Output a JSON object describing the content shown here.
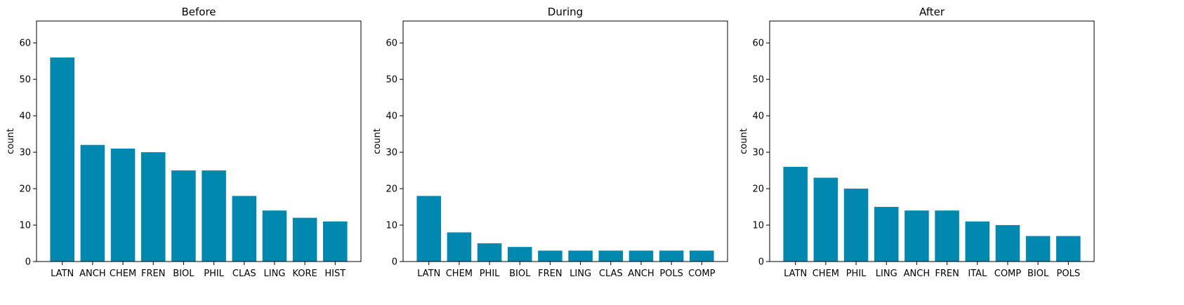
{
  "figure": {
    "bar_color": "#0088b0",
    "axis_color": "#000000",
    "background": "#ffffff"
  },
  "chart_data": [
    {
      "type": "bar",
      "title": "Before",
      "ylabel": "count",
      "ylim": [
        0,
        66
      ],
      "yticks": [
        0,
        10,
        20,
        30,
        40,
        50,
        60
      ],
      "categories": [
        "LATN",
        "ANCH",
        "CHEM",
        "FREN",
        "BIOL",
        "PHIL",
        "CLAS",
        "LING",
        "KORE",
        "HIST"
      ],
      "values": [
        56,
        32,
        31,
        30,
        25,
        25,
        18,
        14,
        12,
        11
      ]
    },
    {
      "type": "bar",
      "title": "During",
      "ylabel": "count",
      "ylim": [
        0,
        66
      ],
      "yticks": [
        0,
        10,
        20,
        30,
        40,
        50,
        60
      ],
      "categories": [
        "LATN",
        "CHEM",
        "PHIL",
        "BIOL",
        "FREN",
        "LING",
        "CLAS",
        "ANCH",
        "POLS",
        "COMP"
      ],
      "values": [
        18,
        8,
        5,
        4,
        3,
        3,
        3,
        3,
        3,
        3
      ]
    },
    {
      "type": "bar",
      "title": "After",
      "ylabel": "count",
      "ylim": [
        0,
        66
      ],
      "yticks": [
        0,
        10,
        20,
        30,
        40,
        50,
        60
      ],
      "categories": [
        "LATN",
        "CHEM",
        "PHIL",
        "LING",
        "ANCH",
        "FREN",
        "ITAL",
        "COMP",
        "BIOL",
        "POLS"
      ],
      "values": [
        26,
        23,
        20,
        15,
        14,
        14,
        11,
        10,
        7,
        7
      ]
    }
  ]
}
